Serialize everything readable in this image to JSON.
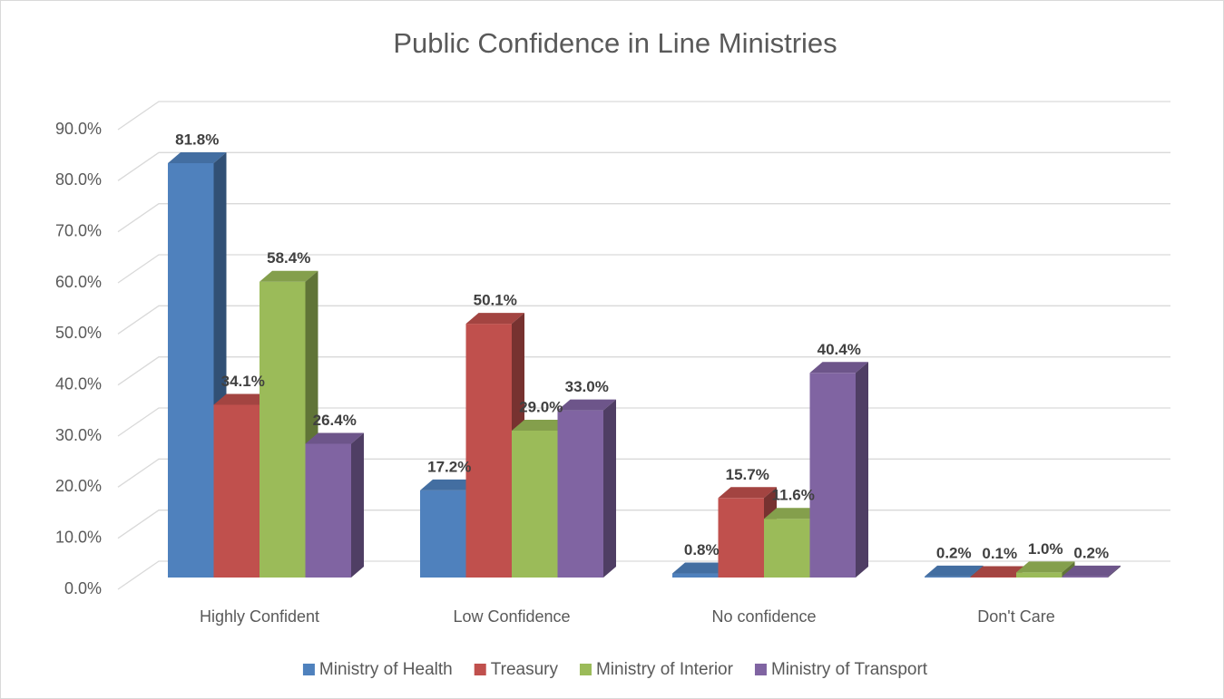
{
  "chart_data": {
    "type": "bar3d",
    "title": "Public Confidence in Line Ministries",
    "categories": [
      "Highly Confident",
      "Low Confidence",
      "No confidence",
      "Don't Care"
    ],
    "series": [
      {
        "name": "Ministry of Health",
        "color": "#4f81bd",
        "values": [
          81.8,
          17.2,
          0.8,
          0.2
        ],
        "value_labels": [
          "81.8%",
          "17.2%",
          "0.8%",
          "0.2%"
        ]
      },
      {
        "name": "Treasury",
        "color": "#c0504d",
        "values": [
          34.1,
          50.1,
          15.7,
          0.1
        ],
        "value_labels": [
          "34.1%",
          "50.1%",
          "15.7%",
          "0.1%"
        ]
      },
      {
        "name": "Ministry of Interior",
        "color": "#9bbb59",
        "values": [
          58.4,
          29.0,
          11.6,
          1.0
        ],
        "value_labels": [
          "58.4%",
          "29.0%",
          "11.6%",
          "1.0%"
        ]
      },
      {
        "name": "Ministry of Transport",
        "color": "#8064a2",
        "values": [
          26.4,
          33.0,
          40.4,
          0.2
        ],
        "value_labels": [
          "26.4%",
          "33.0%",
          "40.4%",
          "0.2%"
        ]
      }
    ],
    "ylim": [
      0,
      90
    ],
    "yticks": [
      {
        "value": 0,
        "label": "0.0%"
      },
      {
        "value": 10,
        "label": "10.0%"
      },
      {
        "value": 20,
        "label": "20.0%"
      },
      {
        "value": 30,
        "label": "30.0%"
      },
      {
        "value": 40,
        "label": "40.0%"
      },
      {
        "value": 50,
        "label": "50.0%"
      },
      {
        "value": 60,
        "label": "60.0%"
      },
      {
        "value": 70,
        "label": "70.0%"
      },
      {
        "value": 80,
        "label": "80.0%"
      },
      {
        "value": 90,
        "label": "90.0%"
      }
    ],
    "grid": true,
    "legend": "bottom"
  }
}
